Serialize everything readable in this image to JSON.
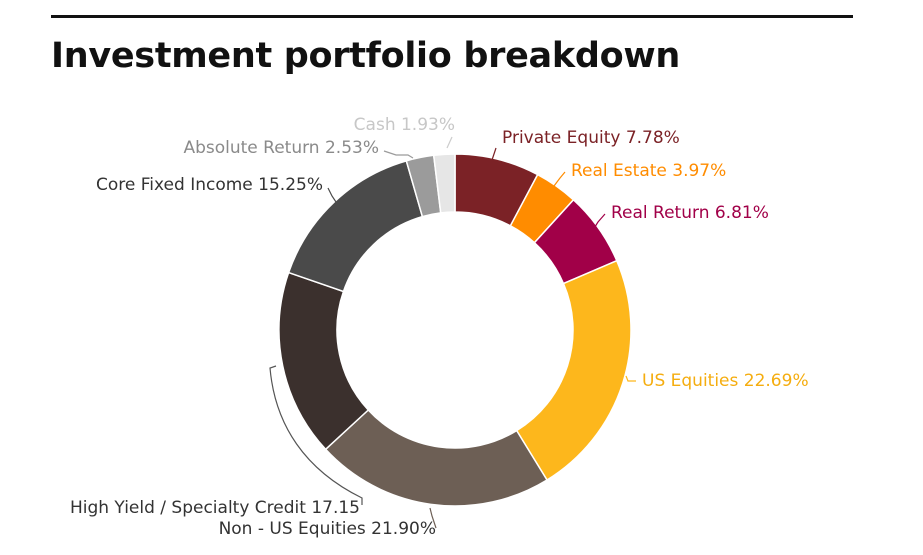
{
  "title": "Investment portfolio breakdown",
  "chart_data": {
    "type": "pie",
    "subtype": "donut",
    "title": "Investment portfolio breakdown",
    "slices": [
      {
        "label": "Private Equity 7.78%",
        "value": 7.78,
        "color": "#7b2226"
      },
      {
        "label": "Real Estate 3.97%",
        "value": 3.97,
        "color": "#ff8c00"
      },
      {
        "label": "Real Return 6.81%",
        "value": 6.81,
        "color": "#a10048"
      },
      {
        "label": "US Equities 22.69%",
        "value": 22.69,
        "color": "#fdb71c"
      },
      {
        "label": "Non - US Equities 21.90%",
        "value": 21.9,
        "color": "#6d5f55"
      },
      {
        "label": "High Yield / Specialty Credit 17.15",
        "value": 17.15,
        "color": "#3b302d"
      },
      {
        "label": "Core Fixed Income 15.25%",
        "value": 15.25,
        "color": "#4a4a4a"
      },
      {
        "label": "Absolute Return 2.53%",
        "value": 2.53,
        "color": "#9b9b9b"
      },
      {
        "label": "Cash 1.93%",
        "value": 1.93,
        "color": "#e6e6e6"
      }
    ],
    "legend": "none",
    "label_color_by_slice": true
  }
}
